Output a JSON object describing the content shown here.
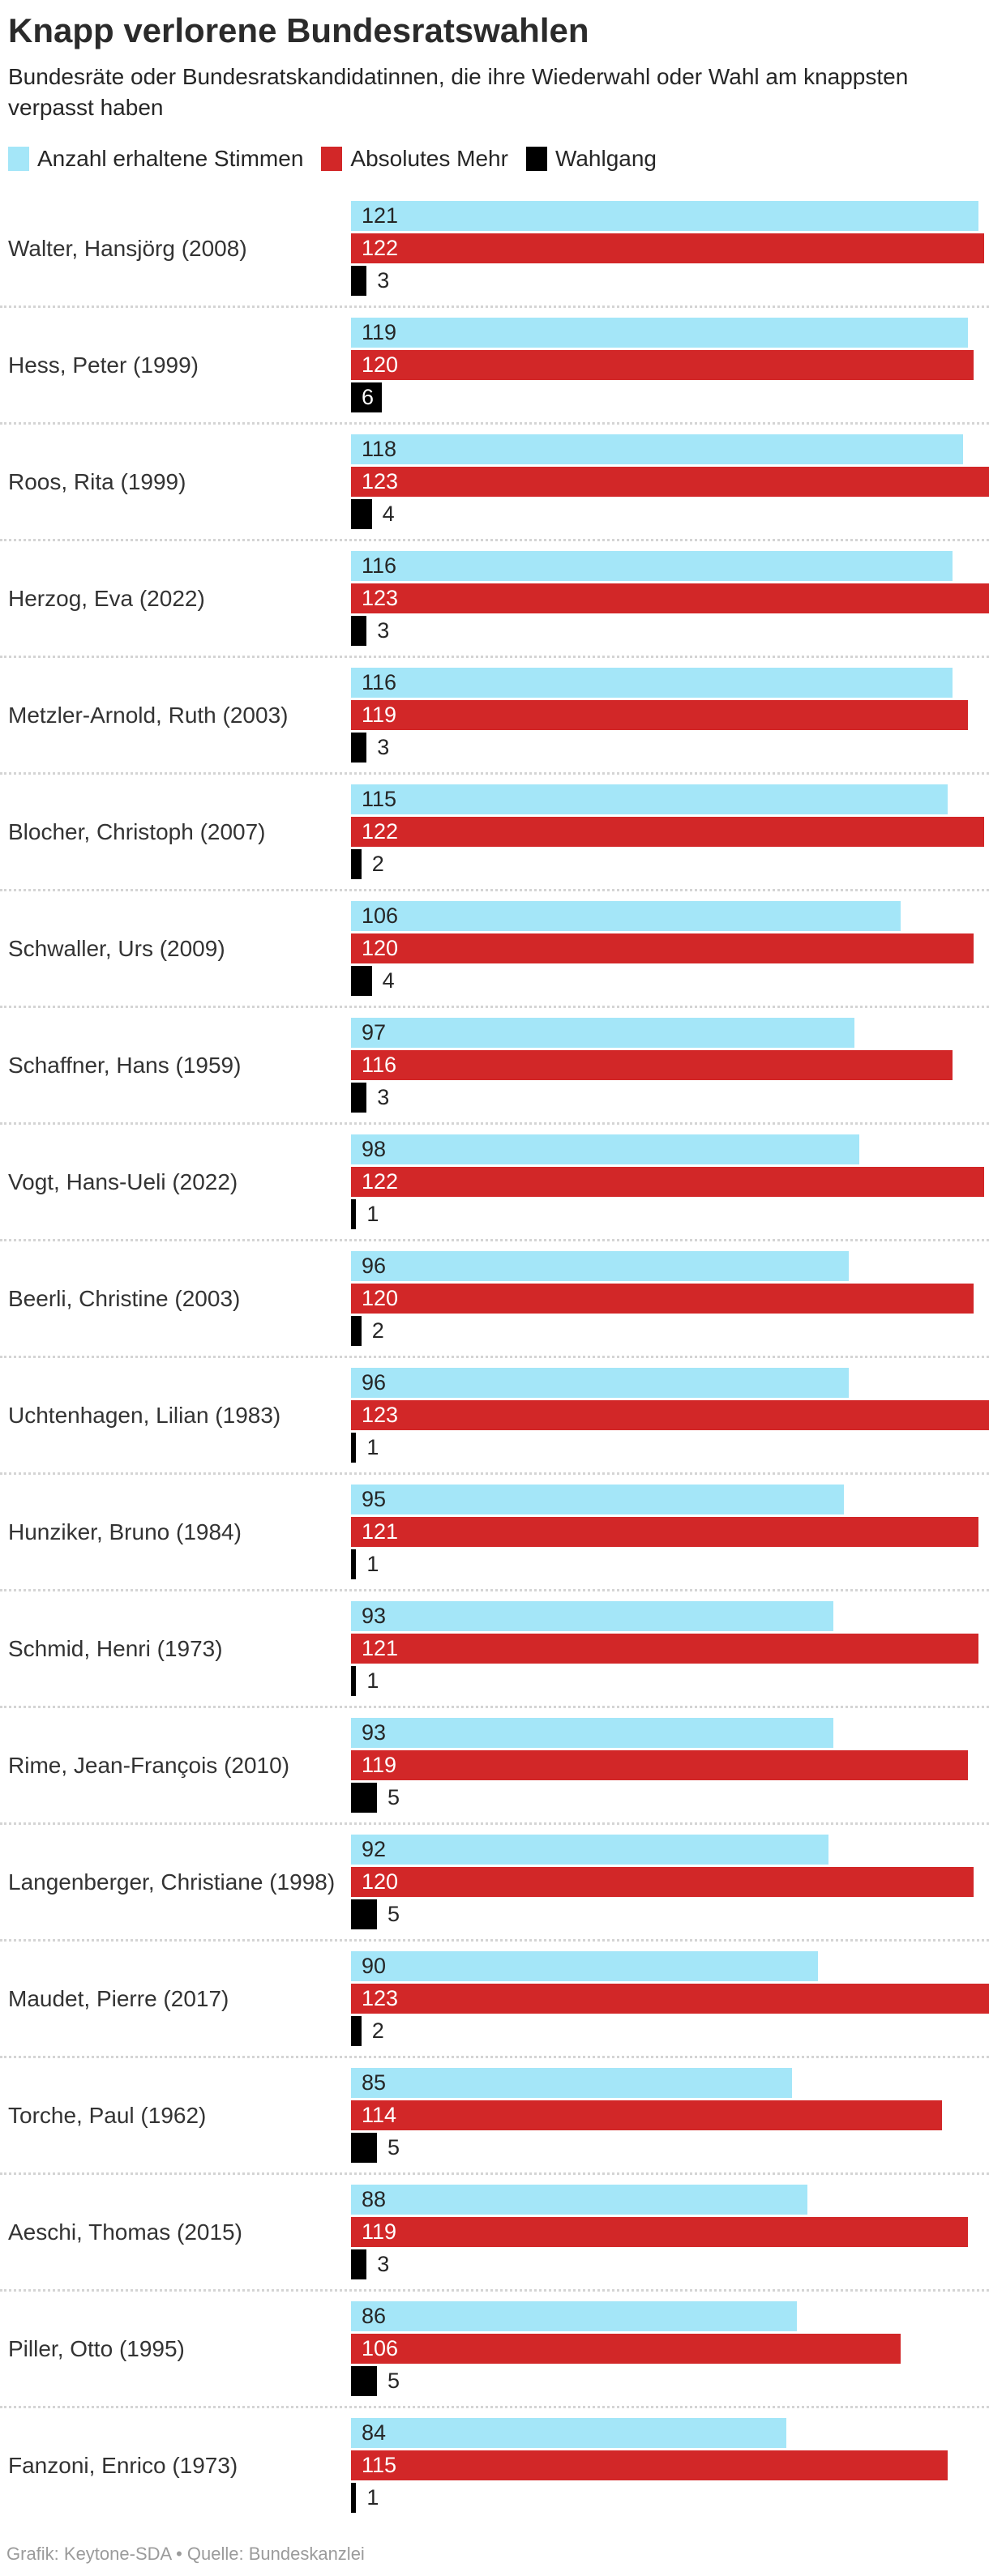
{
  "title": "Knapp verlorene Bundesratswahlen",
  "subtitle": "Bundesräte oder Bundesratskandidatinnen, die ihre Wiederwahl oder Wahl am knappsten verpasst haben",
  "legend": [
    {
      "label": "Anzahl erhaltene Stimmen",
      "color": "#a4e6f8"
    },
    {
      "label": "Absolutes Mehr",
      "color": "#d22728"
    },
    {
      "label": "Wahlgang",
      "color": "#000000"
    }
  ],
  "footer": "Grafik: Keytone-SDA • Quelle: Bundeskanzlei",
  "chart_data": {
    "type": "bar",
    "orientation": "horizontal",
    "axis_max": 123,
    "grid": false,
    "legend_position": "top",
    "categories": [
      "Walter, Hansjörg (2008)",
      "Hess, Peter (1999)",
      "Roos, Rita (1999)",
      "Herzog, Eva (2022)",
      "Metzler-Arnold, Ruth (2003)",
      "Blocher, Christoph (2007)",
      "Schwaller, Urs (2009)",
      "Schaffner, Hans (1959)",
      "Vogt, Hans-Ueli (2022)",
      "Beerli, Christine (2003)",
      "Uchtenhagen, Lilian (1983)",
      "Hunziker, Bruno (1984)",
      "Schmid, Henri (1973)",
      "Rime, Jean-François (2010)",
      "Langenberger, Christiane (1998)",
      "Maudet, Pierre (2017)",
      "Torche, Paul (1962)",
      "Aeschi, Thomas (2015)",
      "Piller, Otto (1995)",
      "Fanzoni, Enrico (1973)"
    ],
    "series": [
      {
        "name": "Anzahl erhaltene Stimmen",
        "color": "#a4e6f8",
        "label_style": "inside-dark",
        "values": [
          121,
          119,
          118,
          116,
          116,
          115,
          106,
          97,
          98,
          96,
          96,
          95,
          93,
          93,
          92,
          90,
          85,
          88,
          86,
          84
        ]
      },
      {
        "name": "Absolutes Mehr",
        "color": "#d22728",
        "label_style": "inside-white",
        "values": [
          122,
          120,
          123,
          123,
          119,
          122,
          120,
          116,
          122,
          120,
          123,
          121,
          121,
          119,
          120,
          123,
          114,
          119,
          106,
          115
        ]
      },
      {
        "name": "Wahlgang",
        "color": "#000000",
        "label_style": "outside-unless-wide",
        "inside_min_value": 6,
        "values": [
          3,
          6,
          4,
          3,
          3,
          2,
          4,
          3,
          1,
          2,
          1,
          1,
          1,
          5,
          5,
          2,
          5,
          3,
          5,
          1
        ]
      }
    ]
  }
}
